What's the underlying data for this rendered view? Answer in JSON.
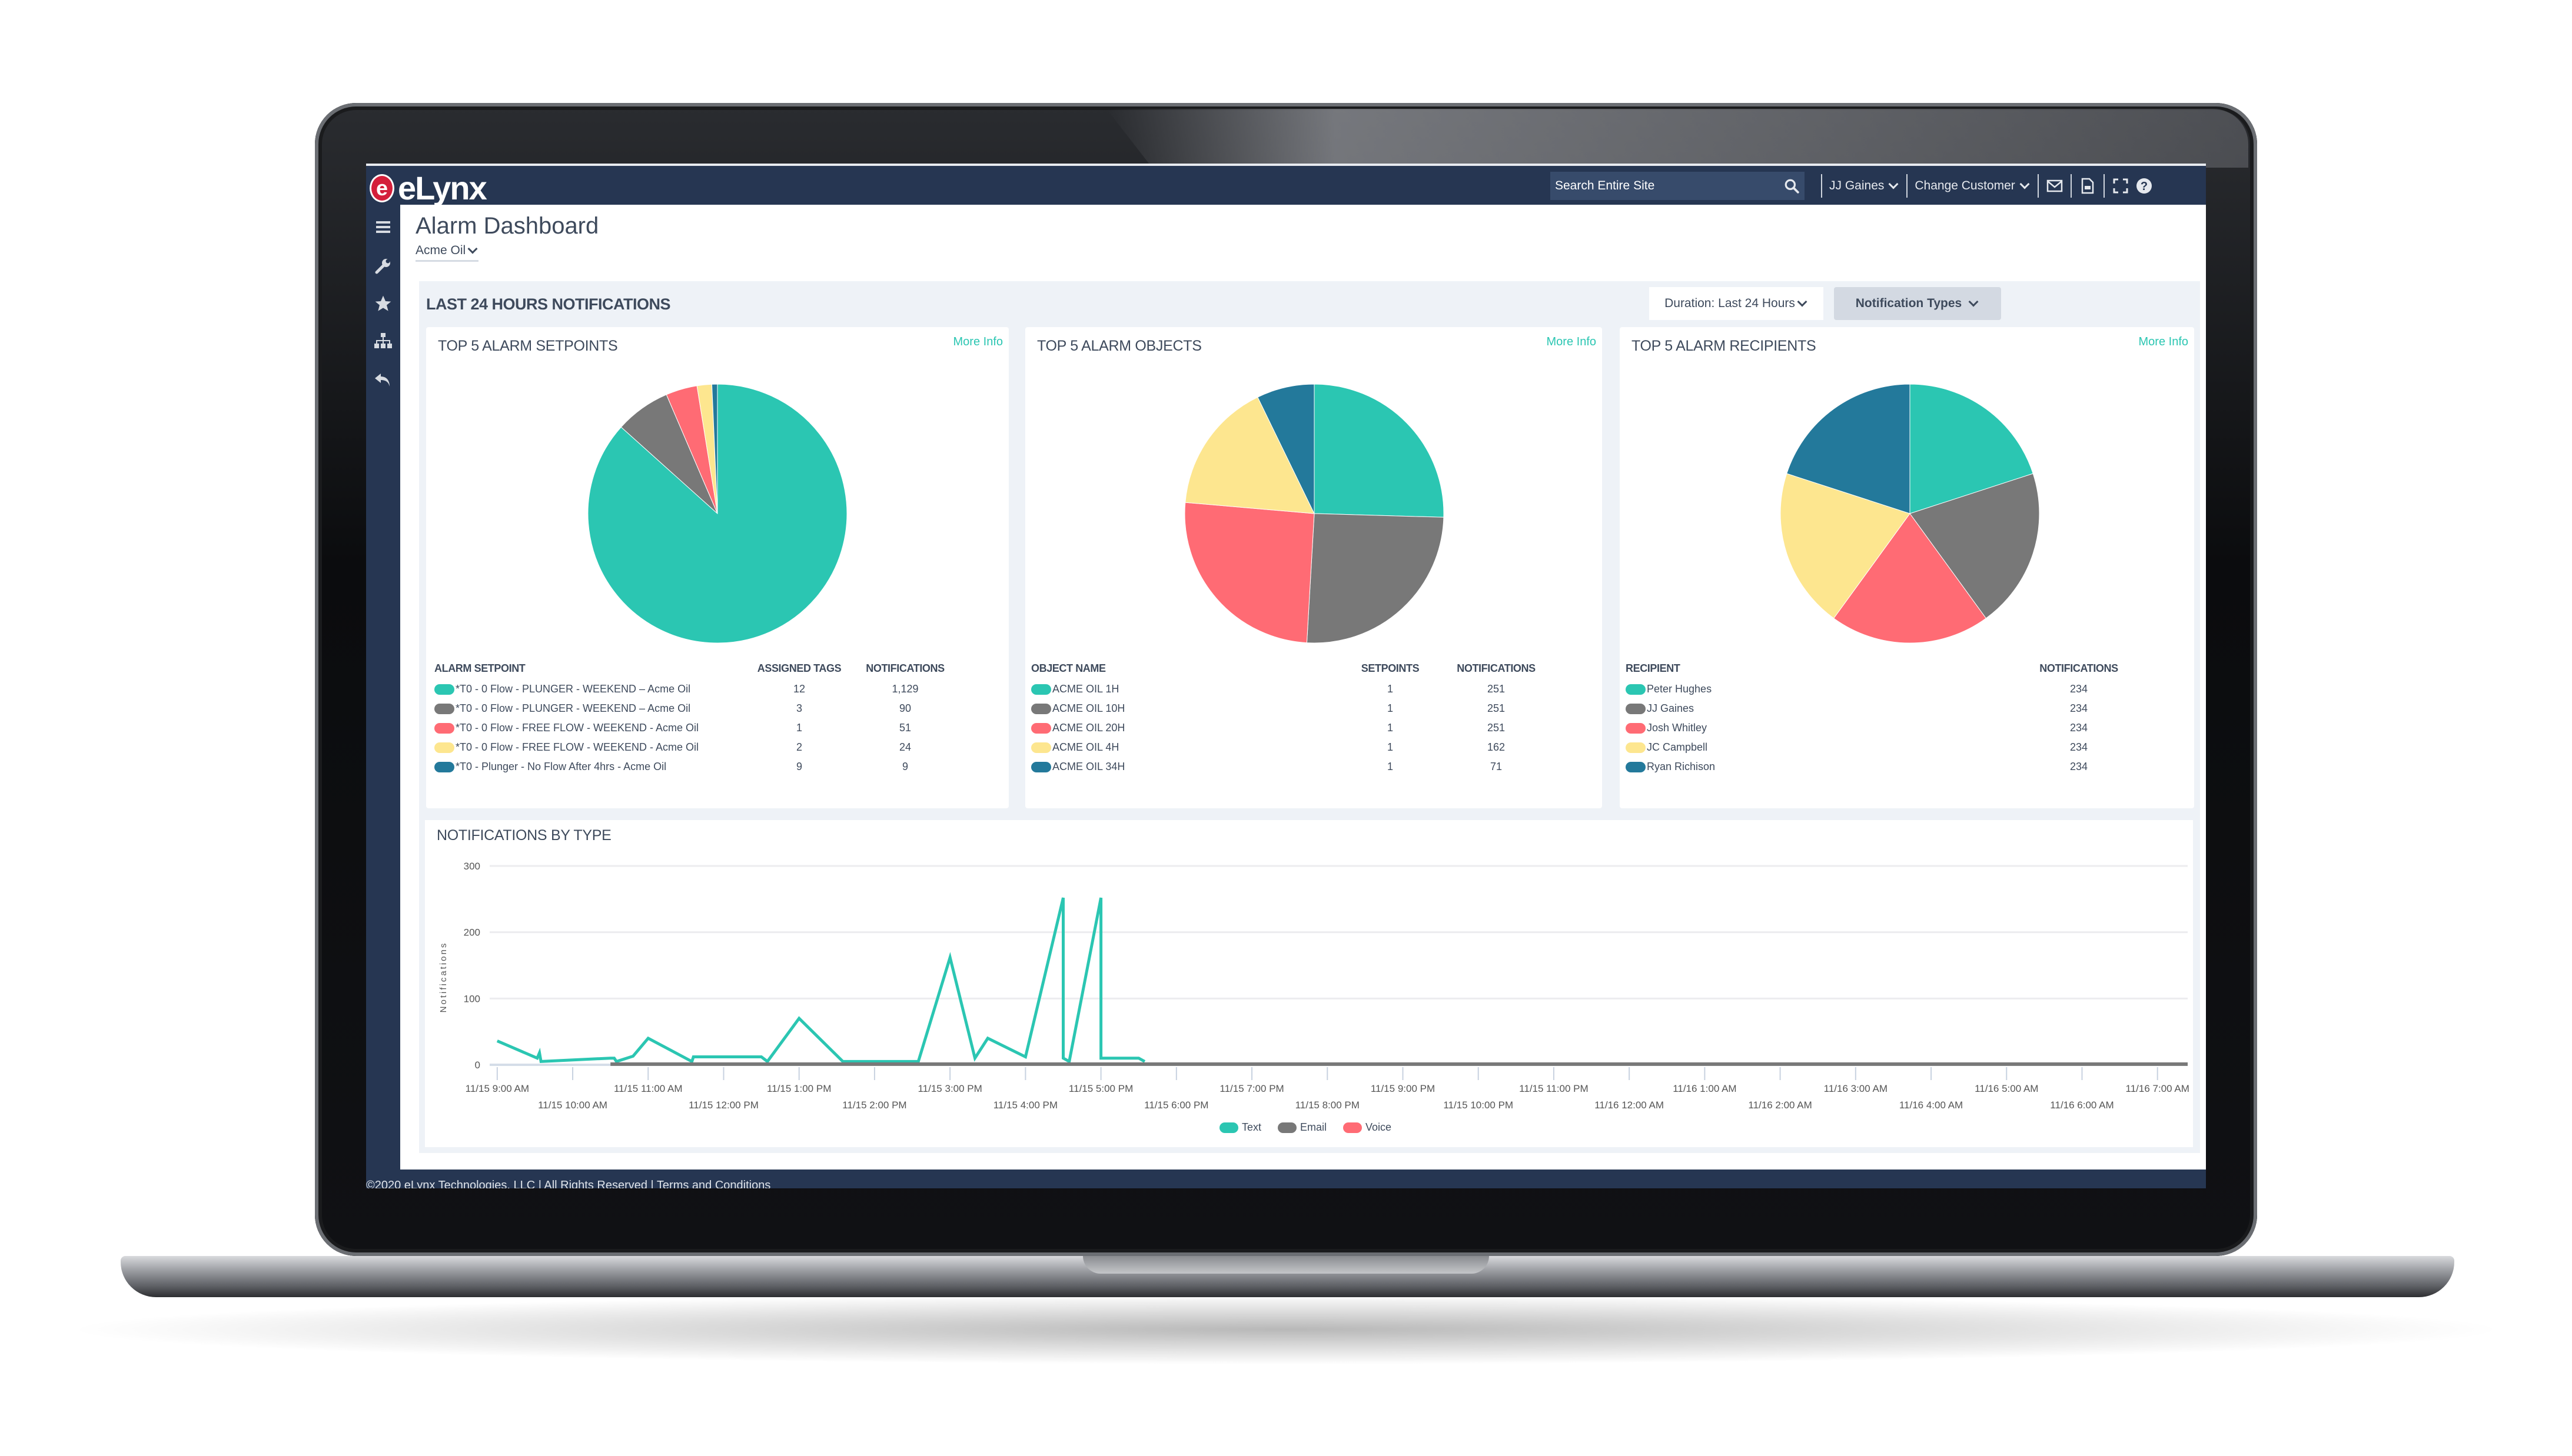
{
  "app": {
    "brand": "eLynx",
    "logo_letter": "e"
  },
  "header": {
    "search": {
      "placeholder": "Search Entire Site",
      "icon": "search-icon"
    },
    "user_menu": "JJ Gaines",
    "customer_menu": "Change Customer",
    "icons": [
      "mail-icon",
      "document-icon",
      "fullscreen-icon",
      "help-icon"
    ]
  },
  "sidebar": {
    "items": [
      {
        "name": "menu",
        "icon": "hamburger-menu-icon"
      },
      {
        "name": "tools",
        "icon": "wrench-icon"
      },
      {
        "name": "favorites",
        "icon": "star-icon"
      },
      {
        "name": "hierarchy",
        "icon": "sitemap-icon"
      },
      {
        "name": "back",
        "icon": "undo-arrow-icon"
      }
    ]
  },
  "page": {
    "title": "Alarm Dashboard",
    "customer": "Acme Oil"
  },
  "section": {
    "title": "LAST 24 HOURS NOTIFICATIONS",
    "duration_label": "Duration: Last 24 Hours",
    "notification_types_label": "Notification Types"
  },
  "colors": {
    "teal": "#2bc6b2",
    "gray": "#787878",
    "red": "#ff6b74",
    "yellow": "#fde68f",
    "blue": "#23799b",
    "navy": "#263652",
    "accent_link": "#2bc6b2"
  },
  "cards": {
    "setpoints": {
      "title": "TOP 5 ALARM SETPOINTS",
      "more_info": "More Info",
      "columns": [
        "ALARM SETPOINT",
        "ASSIGNED TAGS",
        "NOTIFICATIONS"
      ],
      "rows": [
        {
          "name": "*T0 - 0 Flow - PLUNGER - WEEKEND – Acme Oil",
          "tags": "12",
          "notifications": "1,129"
        },
        {
          "name": "*T0 - 0 Flow - PLUNGER - WEEKEND – Acme Oil",
          "tags": "3",
          "notifications": "90"
        },
        {
          "name": "*T0 - 0 Flow - FREE FLOW - WEEKEND - Acme Oil",
          "tags": "1",
          "notifications": "51"
        },
        {
          "name": "*T0 - 0 Flow - FREE FLOW - WEEKEND - Acme Oil",
          "tags": "2",
          "notifications": "24"
        },
        {
          "name": "*T0 - Plunger - No Flow After 4hrs - Acme Oil",
          "tags": "9",
          "notifications": "9"
        }
      ]
    },
    "objects": {
      "title": "TOP 5 ALARM OBJECTS",
      "more_info": "More Info",
      "columns": [
        "OBJECT NAME",
        "SETPOINTS",
        "NOTIFICATIONS"
      ],
      "rows": [
        {
          "name": "ACME OIL 1H",
          "setpoints": "1",
          "notifications": "251"
        },
        {
          "name": "ACME OIL 10H",
          "setpoints": "1",
          "notifications": "251"
        },
        {
          "name": "ACME OIL 20H",
          "setpoints": "1",
          "notifications": "251"
        },
        {
          "name": "ACME OIL 4H",
          "setpoints": "1",
          "notifications": "162"
        },
        {
          "name": "ACME OIL 34H",
          "setpoints": "1",
          "notifications": "71"
        }
      ]
    },
    "recipients": {
      "title": "TOP 5 ALARM RECIPIENTS",
      "more_info": "More Info",
      "columns": [
        "RECIPIENT",
        "NOTIFICATIONS"
      ],
      "rows": [
        {
          "name": "Peter Hughes",
          "notifications": "234"
        },
        {
          "name": "JJ Gaines",
          "notifications": "234"
        },
        {
          "name": "Josh Whitley",
          "notifications": "234"
        },
        {
          "name": "JC Campbell",
          "notifications": "234"
        },
        {
          "name": "Ryan Richison",
          "notifications": "234"
        }
      ]
    },
    "by_type": {
      "title": "NOTIFICATIONS BY TYPE"
    }
  },
  "chart_data": [
    {
      "type": "pie",
      "title": "TOP 5 ALARM SETPOINTS",
      "categories": [
        "*T0 - 0 Flow - PLUNGER - WEEKEND – Acme Oil (12 tags)",
        "*T0 - 0 Flow - PLUNGER - WEEKEND – Acme Oil (3 tags)",
        "*T0 - 0 Flow - FREE FLOW - WEEKEND - Acme Oil (1 tag)",
        "*T0 - 0 Flow - FREE FLOW - WEEKEND - Acme Oil (2 tags)",
        "*T0 - Plunger - No Flow After 4hrs - Acme Oil"
      ],
      "values": [
        1129,
        90,
        51,
        24,
        9
      ],
      "colors": [
        "#2bc6b2",
        "#787878",
        "#ff6b74",
        "#fde68f",
        "#23799b"
      ],
      "start_angle": "12 o'clock",
      "direction": "clockwise"
    },
    {
      "type": "pie",
      "title": "TOP 5 ALARM OBJECTS",
      "categories": [
        "ACME OIL 1H",
        "ACME OIL 10H",
        "ACME OIL 20H",
        "ACME OIL 4H",
        "ACME OIL 34H"
      ],
      "values": [
        251,
        251,
        251,
        162,
        71
      ],
      "colors": [
        "#2bc6b2",
        "#787878",
        "#ff6b74",
        "#fde68f",
        "#23799b"
      ],
      "start_angle": "12 o'clock",
      "direction": "clockwise"
    },
    {
      "type": "pie",
      "title": "TOP 5 ALARM RECIPIENTS",
      "categories": [
        "Peter Hughes",
        "JJ Gaines",
        "Josh Whitley",
        "JC Campbell",
        "Ryan Richison"
      ],
      "values": [
        234,
        234,
        234,
        234,
        234
      ],
      "colors": [
        "#2bc6b2",
        "#787878",
        "#ff6b74",
        "#fde68f",
        "#23799b"
      ],
      "start_angle": "12 o'clock",
      "direction": "clockwise"
    },
    {
      "type": "line",
      "title": "NOTIFICATIONS BY TYPE",
      "xlabel": "",
      "ylabel": "Notifications",
      "ylim": [
        0,
        300
      ],
      "yticks": [
        0,
        100,
        200,
        300
      ],
      "grid": true,
      "legend_position": "bottom",
      "xlim_hours": [
        -0.1,
        22.4
      ],
      "xticks": [
        {
          "h": 0,
          "label": "11/15 9:00 AM",
          "row": 0
        },
        {
          "h": 1,
          "label": "11/15 10:00 AM",
          "row": 1
        },
        {
          "h": 2,
          "label": "11/15 11:00 AM",
          "row": 0
        },
        {
          "h": 3,
          "label": "11/15 12:00 PM",
          "row": 1
        },
        {
          "h": 4,
          "label": "11/15 1:00 PM",
          "row": 0
        },
        {
          "h": 5,
          "label": "11/15 2:00 PM",
          "row": 1
        },
        {
          "h": 6,
          "label": "11/15 3:00 PM",
          "row": 0
        },
        {
          "h": 7,
          "label": "11/15 4:00 PM",
          "row": 1
        },
        {
          "h": 8,
          "label": "11/15 5:00 PM",
          "row": 0
        },
        {
          "h": 9,
          "label": "11/15 6:00 PM",
          "row": 1
        },
        {
          "h": 10,
          "label": "11/15 7:00 PM",
          "row": 0
        },
        {
          "h": 11,
          "label": "11/15 8:00 PM",
          "row": 1
        },
        {
          "h": 12,
          "label": "11/15 9:00 PM",
          "row": 0
        },
        {
          "h": 13,
          "label": "11/15 10:00 PM",
          "row": 1
        },
        {
          "h": 14,
          "label": "11/15 11:00 PM",
          "row": 0
        },
        {
          "h": 15,
          "label": "11/16 12:00 AM",
          "row": 1
        },
        {
          "h": 16,
          "label": "11/16 1:00 AM",
          "row": 0
        },
        {
          "h": 17,
          "label": "11/16 2:00 AM",
          "row": 1
        },
        {
          "h": 18,
          "label": "11/16 3:00 AM",
          "row": 0
        },
        {
          "h": 19,
          "label": "11/16 4:00 AM",
          "row": 1
        },
        {
          "h": 20,
          "label": "11/16 5:00 AM",
          "row": 0
        },
        {
          "h": 21,
          "label": "11/16 6:00 AM",
          "row": 1
        },
        {
          "h": 22,
          "label": "11/16 7:00 AM",
          "row": 0
        }
      ],
      "series": [
        {
          "name": "Text",
          "color": "#2bc6b2",
          "points": [
            [
              0,
              36
            ],
            [
              0.53,
              10
            ],
            [
              0.56,
              18
            ],
            [
              0.58,
              5
            ],
            [
              1.5,
              10
            ],
            [
              1.55,
              10
            ],
            [
              1.58,
              5
            ],
            [
              1.8,
              13
            ],
            [
              2.0,
              40
            ],
            [
              2.58,
              5
            ],
            [
              2.6,
              12
            ],
            [
              3.5,
              12
            ],
            [
              3.58,
              5
            ],
            [
              4.0,
              70
            ],
            [
              4.58,
              5
            ],
            [
              5.58,
              5
            ],
            [
              6.0,
              162
            ],
            [
              6.33,
              10
            ],
            [
              6.5,
              40
            ],
            [
              7.0,
              12
            ],
            [
              7.5,
              252
            ],
            [
              7.5,
              10
            ],
            [
              7.58,
              5
            ],
            [
              8.0,
              252
            ],
            [
              8.0,
              10
            ],
            [
              8.5,
              10
            ],
            [
              8.58,
              5
            ]
          ]
        },
        {
          "name": "Email",
          "color": "#787878",
          "points": [
            [
              1.5,
              1
            ],
            [
              22.4,
              1
            ]
          ]
        },
        {
          "name": "Voice",
          "color": "#ff6b74",
          "points": []
        }
      ]
    }
  ],
  "chart_legend": [
    "Text",
    "Email",
    "Voice"
  ],
  "footer": {
    "text": "©2020 eLynx Technologies, LLC | All Rights Reserved | Terms and Conditions"
  }
}
